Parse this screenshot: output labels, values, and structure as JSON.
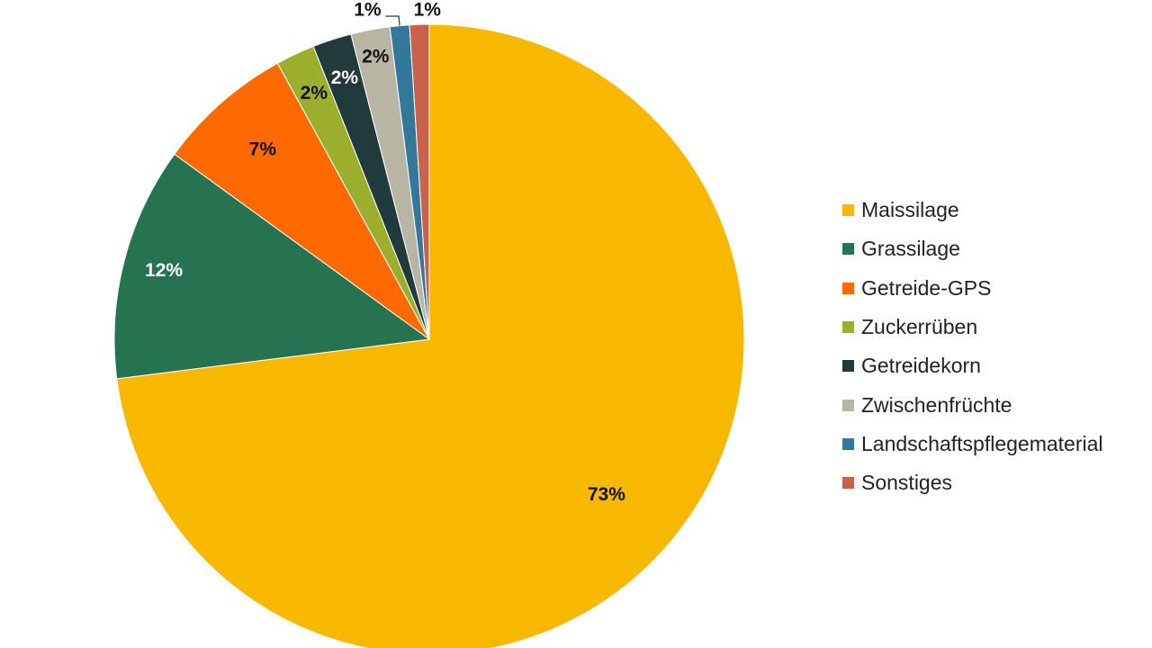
{
  "chart_data": {
    "type": "pie",
    "title": "",
    "slices": [
      {
        "name": "Maissilage",
        "value": 73,
        "label": "73%",
        "color": "#F8B800"
      },
      {
        "name": "Grassilage",
        "value": 12,
        "label": "12%",
        "color": "#267352"
      },
      {
        "name": "Getreide-GPS",
        "value": 7,
        "label": "7%",
        "color": "#FF6A00"
      },
      {
        "name": "Zuckerrüben",
        "value": 2,
        "label": "2%",
        "color": "#9BAF2C"
      },
      {
        "name": "Getreidekorn",
        "value": 2,
        "label": "2%",
        "color": "#213A3C"
      },
      {
        "name": "Zwischenfrüchte",
        "value": 2,
        "label": "2%",
        "color": "#B9B5A4"
      },
      {
        "name": "Landschaftspflegematerial",
        "value": 1,
        "label": "1%",
        "color": "#33779B"
      },
      {
        "name": "Sonstiges",
        "value": 1,
        "label": "1%",
        "color": "#C8624A"
      }
    ],
    "legend_position": "right",
    "label_colors": {
      "dark": "#111111",
      "light": "#ffffff"
    }
  }
}
